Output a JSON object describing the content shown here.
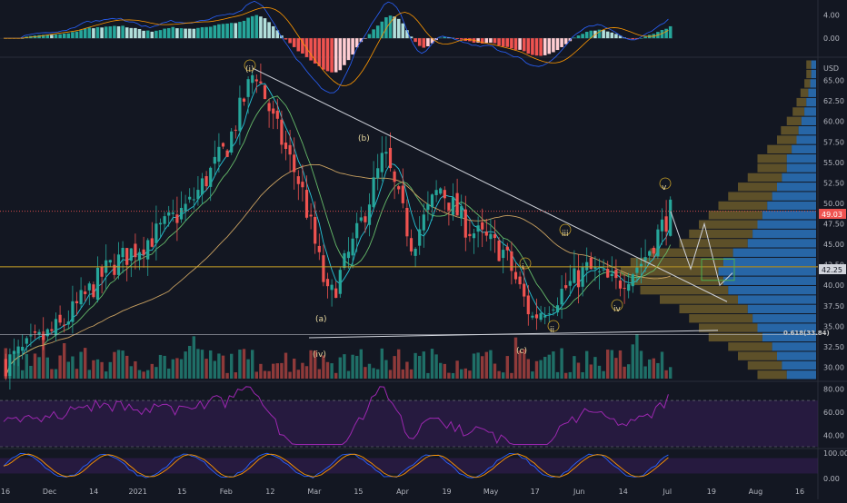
{
  "chart_data": [
    {
      "type": "histogram",
      "name": "macd",
      "y_ticks": [
        "4.00",
        "0.00"
      ],
      "ylim": [
        -2.5,
        6
      ]
    },
    {
      "type": "candlestick",
      "name": "price",
      "currency": "USD",
      "ylim": [
        28.5,
        67.5
      ],
      "y_ticks": [
        "65.00",
        "62.50",
        "60.00",
        "57.50",
        "55.00",
        "52.50",
        "50.00",
        "47.50",
        "45.00",
        "42.50",
        "40.00",
        "37.50",
        "35.00",
        "32.50",
        "30.00"
      ],
      "last_price": "49.03",
      "level_price": "42.25",
      "time_labels": [
        "16",
        "Dec",
        "14",
        "2021",
        "15",
        "Feb",
        "12",
        "Mar",
        "15",
        "Apr",
        "19",
        "May",
        "17",
        "Jun",
        "14",
        "Jul",
        "19",
        "Aug",
        "16"
      ],
      "key_points": [
        {
          "t": 0,
          "v": 30.5
        },
        {
          "t": 12,
          "v": 35
        },
        {
          "t": 22,
          "v": 42
        },
        {
          "t": 32,
          "v": 46
        },
        {
          "t": 40,
          "v": 50
        },
        {
          "t": 48,
          "v": 57
        },
        {
          "t": 54,
          "v": 66.5
        },
        {
          "t": 58,
          "v": 60
        },
        {
          "t": 64,
          "v": 52
        },
        {
          "t": 70,
          "v": 38
        },
        {
          "t": 76,
          "v": 46
        },
        {
          "t": 82,
          "v": 56
        },
        {
          "t": 88,
          "v": 45
        },
        {
          "t": 94,
          "v": 52
        },
        {
          "t": 100,
          "v": 47
        },
        {
          "t": 108,
          "v": 44
        },
        {
          "t": 114,
          "v": 36
        },
        {
          "t": 120,
          "v": 39
        },
        {
          "t": 126,
          "v": 42
        },
        {
          "t": 132,
          "v": 40
        },
        {
          "t": 138,
          "v": 43
        },
        {
          "t": 144,
          "v": 49
        }
      ],
      "wave_labels": [
        "(i)",
        "(b)",
        "(a)",
        "(iv)",
        "(c)",
        "i",
        "ii",
        "iii",
        "iv",
        "v"
      ],
      "fib_labels": [
        "0.618(33.84)"
      ],
      "volume_profile": [
        0.3,
        0.35,
        0.4,
        0.45,
        0.55,
        0.6,
        0.65,
        0.7,
        0.8,
        0.9,
        0.95,
        1.0,
        0.95,
        0.85,
        0.7,
        0.65,
        0.6,
        0.55,
        0.5,
        0.45,
        0.4,
        0.35,
        0.3,
        0.3,
        0.25,
        0.2,
        0.18,
        0.15,
        0.12,
        0.1,
        0.08,
        0.06,
        0.05,
        0.05
      ]
    },
    {
      "type": "line",
      "name": "rsi",
      "y_ticks": [
        "80.00",
        "60.00",
        "40.00"
      ],
      "ylim": [
        30,
        85
      ]
    },
    {
      "type": "line",
      "name": "stochastic",
      "y_ticks": [
        "100.00",
        "0.00"
      ],
      "ylim": [
        -10,
        110
      ]
    }
  ],
  "colors": {
    "background": "#131722",
    "up": "#26a69a",
    "down": "#ef5350",
    "up_volume": "#1f6f67",
    "down_volume": "#8f3a3a",
    "trendline": "#d1d4dc",
    "level": "#c9a227",
    "last_price": "#ef5350",
    "rsi": "#9c27b0",
    "rsi_band": "#3a1d5c",
    "stoch_k": "#2962ff",
    "stoch_d": "#ff9800",
    "profile_up": "#2a6fb5",
    "profile_down": "#6b5a2a",
    "ma_fast": "#26c6da",
    "ma_mid": "#66bb6a",
    "ma_slow": "#c8a060"
  }
}
